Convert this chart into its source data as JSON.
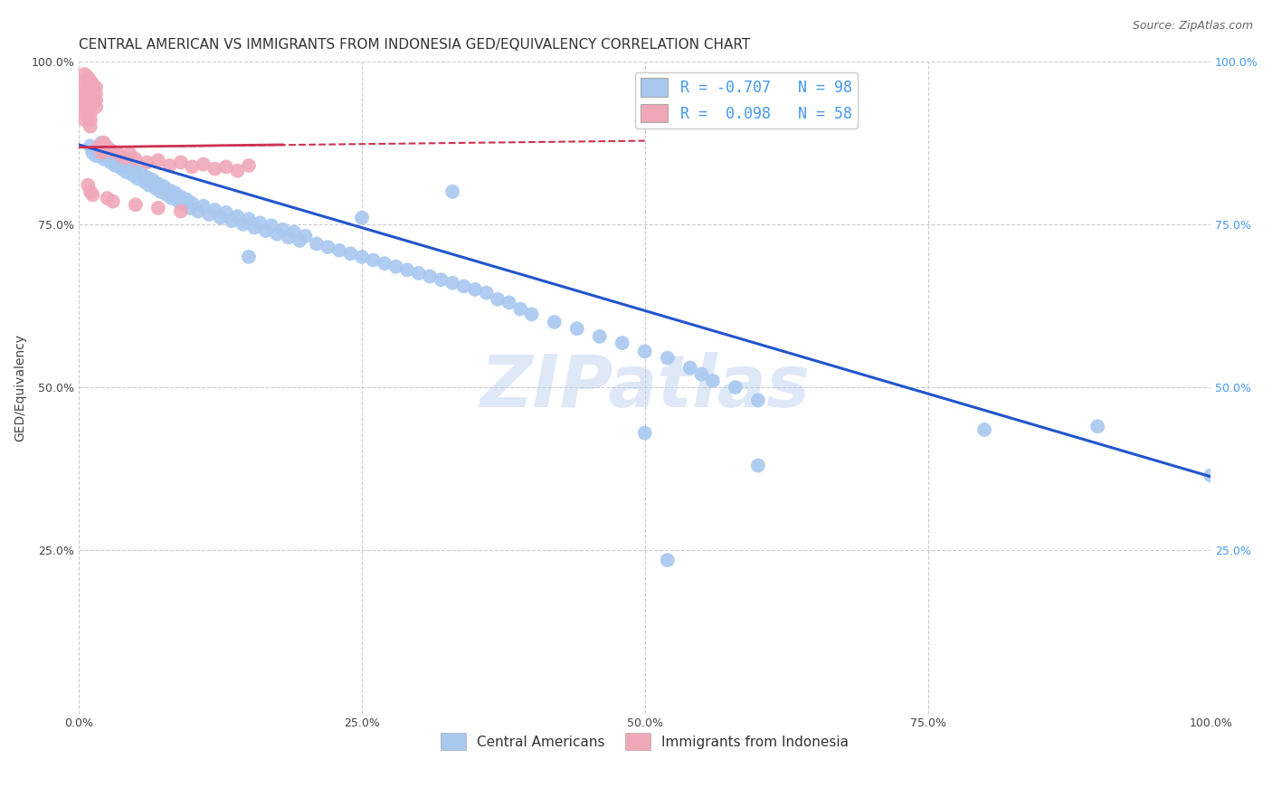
{
  "title": "CENTRAL AMERICAN VS IMMIGRANTS FROM INDONESIA GED/EQUIVALENCY CORRELATION CHART",
  "source": "Source: ZipAtlas.com",
  "ylabel": "GED/Equivalency",
  "xlabel": "",
  "xlim": [
    0,
    1.0
  ],
  "ylim": [
    0,
    1.0
  ],
  "xticks": [
    0.0,
    0.25,
    0.5,
    0.75,
    1.0
  ],
  "yticks": [
    0.25,
    0.5,
    0.75,
    1.0
  ],
  "xtick_labels": [
    "0.0%",
    "25.0%",
    "50.0%",
    "75.0%",
    "100.0%"
  ],
  "ytick_labels": [
    "25.0%",
    "50.0%",
    "75.0%",
    "100.0%"
  ],
  "blue_R": -0.707,
  "blue_N": 98,
  "pink_R": 0.098,
  "pink_N": 58,
  "blue_color": "#a8c8f0",
  "pink_color": "#f0a8b8",
  "blue_line_color": "#2255cc",
  "pink_line_color": "#cc3355",
  "blue_scatter": [
    [
      0.01,
      0.87
    ],
    [
      0.012,
      0.86
    ],
    [
      0.015,
      0.855
    ],
    [
      0.018,
      0.865
    ],
    [
      0.02,
      0.875
    ],
    [
      0.022,
      0.85
    ],
    [
      0.025,
      0.858
    ],
    [
      0.028,
      0.845
    ],
    [
      0.03,
      0.852
    ],
    [
      0.032,
      0.84
    ],
    [
      0.035,
      0.848
    ],
    [
      0.038,
      0.835
    ],
    [
      0.04,
      0.842
    ],
    [
      0.042,
      0.83
    ],
    [
      0.045,
      0.838
    ],
    [
      0.048,
      0.825
    ],
    [
      0.05,
      0.832
    ],
    [
      0.052,
      0.82
    ],
    [
      0.055,
      0.828
    ],
    [
      0.058,
      0.815
    ],
    [
      0.06,
      0.822
    ],
    [
      0.062,
      0.81
    ],
    [
      0.065,
      0.818
    ],
    [
      0.068,
      0.805
    ],
    [
      0.07,
      0.812
    ],
    [
      0.072,
      0.8
    ],
    [
      0.075,
      0.808
    ],
    [
      0.078,
      0.795
    ],
    [
      0.08,
      0.802
    ],
    [
      0.082,
      0.79
    ],
    [
      0.085,
      0.798
    ],
    [
      0.088,
      0.785
    ],
    [
      0.09,
      0.792
    ],
    [
      0.092,
      0.78
    ],
    [
      0.095,
      0.788
    ],
    [
      0.098,
      0.775
    ],
    [
      0.1,
      0.782
    ],
    [
      0.105,
      0.77
    ],
    [
      0.11,
      0.778
    ],
    [
      0.115,
      0.765
    ],
    [
      0.12,
      0.772
    ],
    [
      0.125,
      0.76
    ],
    [
      0.13,
      0.768
    ],
    [
      0.135,
      0.755
    ],
    [
      0.14,
      0.762
    ],
    [
      0.145,
      0.75
    ],
    [
      0.15,
      0.758
    ],
    [
      0.155,
      0.745
    ],
    [
      0.16,
      0.752
    ],
    [
      0.165,
      0.74
    ],
    [
      0.17,
      0.748
    ],
    [
      0.175,
      0.735
    ],
    [
      0.18,
      0.742
    ],
    [
      0.185,
      0.73
    ],
    [
      0.19,
      0.738
    ],
    [
      0.195,
      0.725
    ],
    [
      0.2,
      0.732
    ],
    [
      0.21,
      0.72
    ],
    [
      0.22,
      0.715
    ],
    [
      0.23,
      0.71
    ],
    [
      0.24,
      0.705
    ],
    [
      0.25,
      0.7
    ],
    [
      0.26,
      0.695
    ],
    [
      0.27,
      0.69
    ],
    [
      0.28,
      0.685
    ],
    [
      0.29,
      0.68
    ],
    [
      0.3,
      0.675
    ],
    [
      0.31,
      0.67
    ],
    [
      0.32,
      0.665
    ],
    [
      0.33,
      0.66
    ],
    [
      0.34,
      0.655
    ],
    [
      0.35,
      0.65
    ],
    [
      0.36,
      0.645
    ],
    [
      0.37,
      0.635
    ],
    [
      0.38,
      0.63
    ],
    [
      0.39,
      0.62
    ],
    [
      0.4,
      0.612
    ],
    [
      0.42,
      0.6
    ],
    [
      0.44,
      0.59
    ],
    [
      0.46,
      0.578
    ],
    [
      0.48,
      0.568
    ],
    [
      0.5,
      0.555
    ],
    [
      0.52,
      0.545
    ],
    [
      0.54,
      0.53
    ],
    [
      0.55,
      0.52
    ],
    [
      0.56,
      0.51
    ],
    [
      0.58,
      0.5
    ],
    [
      0.6,
      0.48
    ],
    [
      0.15,
      0.7
    ],
    [
      0.25,
      0.76
    ],
    [
      0.33,
      0.8
    ],
    [
      0.5,
      0.43
    ],
    [
      0.52,
      0.235
    ],
    [
      0.6,
      0.38
    ],
    [
      0.8,
      0.435
    ],
    [
      0.9,
      0.44
    ],
    [
      1.0,
      0.365
    ]
  ],
  "pink_scatter": [
    [
      0.005,
      0.98
    ],
    [
      0.005,
      0.97
    ],
    [
      0.005,
      0.96
    ],
    [
      0.005,
      0.95
    ],
    [
      0.005,
      0.94
    ],
    [
      0.005,
      0.93
    ],
    [
      0.005,
      0.92
    ],
    [
      0.005,
      0.91
    ],
    [
      0.008,
      0.975
    ],
    [
      0.008,
      0.965
    ],
    [
      0.008,
      0.955
    ],
    [
      0.008,
      0.945
    ],
    [
      0.008,
      0.935
    ],
    [
      0.008,
      0.925
    ],
    [
      0.008,
      0.915
    ],
    [
      0.01,
      0.97
    ],
    [
      0.01,
      0.96
    ],
    [
      0.01,
      0.95
    ],
    [
      0.01,
      0.94
    ],
    [
      0.01,
      0.93
    ],
    [
      0.01,
      0.92
    ],
    [
      0.01,
      0.91
    ],
    [
      0.01,
      0.9
    ],
    [
      0.012,
      0.965
    ],
    [
      0.012,
      0.955
    ],
    [
      0.012,
      0.945
    ],
    [
      0.012,
      0.935
    ],
    [
      0.015,
      0.96
    ],
    [
      0.015,
      0.95
    ],
    [
      0.015,
      0.94
    ],
    [
      0.015,
      0.93
    ],
    [
      0.018,
      0.87
    ],
    [
      0.02,
      0.86
    ],
    [
      0.022,
      0.875
    ],
    [
      0.025,
      0.868
    ],
    [
      0.03,
      0.862
    ],
    [
      0.035,
      0.858
    ],
    [
      0.04,
      0.852
    ],
    [
      0.045,
      0.858
    ],
    [
      0.05,
      0.85
    ],
    [
      0.06,
      0.845
    ],
    [
      0.07,
      0.848
    ],
    [
      0.08,
      0.84
    ],
    [
      0.09,
      0.845
    ],
    [
      0.1,
      0.838
    ],
    [
      0.11,
      0.842
    ],
    [
      0.12,
      0.835
    ],
    [
      0.13,
      0.838
    ],
    [
      0.14,
      0.832
    ],
    [
      0.008,
      0.81
    ],
    [
      0.01,
      0.8
    ],
    [
      0.012,
      0.795
    ],
    [
      0.025,
      0.79
    ],
    [
      0.03,
      0.785
    ],
    [
      0.05,
      0.78
    ],
    [
      0.07,
      0.775
    ],
    [
      0.09,
      0.77
    ],
    [
      0.15,
      0.84
    ]
  ],
  "blue_trendline": [
    [
      0.0,
      0.872
    ],
    [
      1.0,
      0.363
    ]
  ],
  "pink_trendline_solid": [
    [
      0.0,
      0.868
    ],
    [
      0.18,
      0.872
    ]
  ],
  "pink_trendline_dashed": [
    [
      0.0,
      0.868
    ],
    [
      0.5,
      0.878
    ]
  ],
  "watermark": "ZIPatlas",
  "legend_blue_label_r": "-0.707",
  "legend_blue_label_n": "98",
  "legend_pink_label_r": "0.098",
  "legend_pink_label_n": "58",
  "title_fontsize": 11,
  "axis_label_fontsize": 10,
  "tick_fontsize": 9,
  "right_tick_color": "#4499ee",
  "background_color": "#ffffff",
  "grid_color": "#cccccc"
}
